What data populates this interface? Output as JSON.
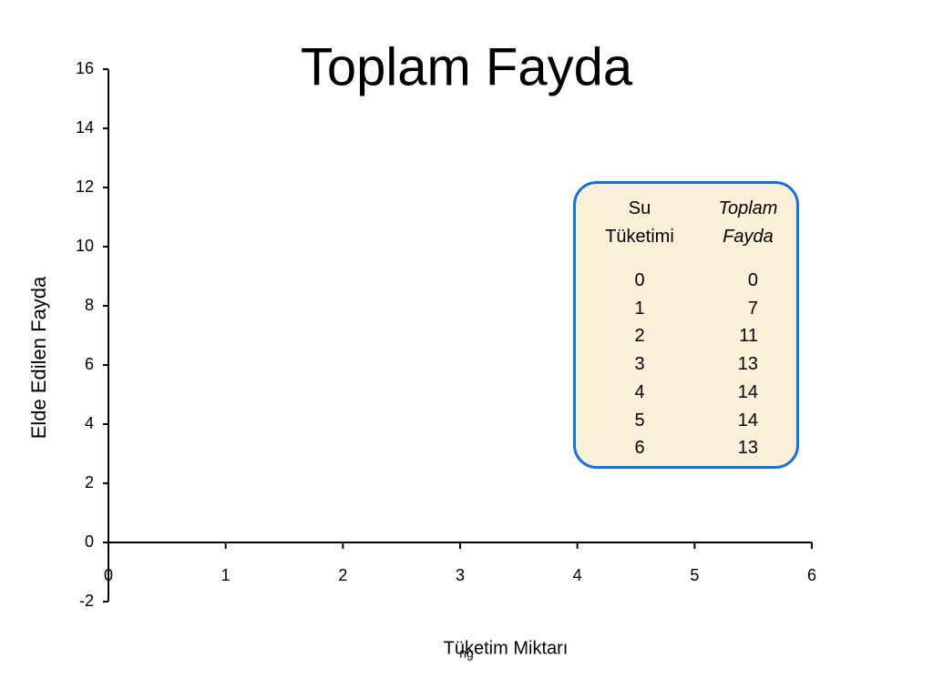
{
  "chart_data": {
    "type": "line",
    "title": "Toplam Fayda",
    "xlabel": "Tüketim Miktarı",
    "ylabel": "Elde Edilen Fayda",
    "xlim": [
      0,
      6
    ],
    "xticks": [
      0,
      1,
      2,
      3,
      4,
      5,
      6
    ],
    "ylim": [
      -2,
      16
    ],
    "yticks": [
      -2,
      0,
      2,
      4,
      6,
      8,
      10,
      12,
      14,
      16
    ],
    "series": [],
    "annotation": "ng"
  },
  "table": {
    "header": [
      "Su Tüketimi",
      "Toplam Fayda"
    ],
    "rows": [
      [
        0,
        0
      ],
      [
        1,
        7
      ],
      [
        2,
        11
      ],
      [
        3,
        13
      ],
      [
        4,
        14
      ],
      [
        5,
        14
      ],
      [
        6,
        13
      ]
    ]
  }
}
